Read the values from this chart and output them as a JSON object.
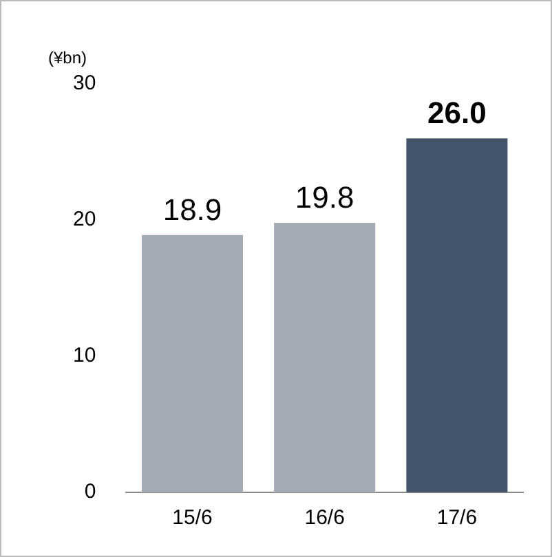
{
  "chart_data": {
    "type": "bar",
    "ylabel": "(¥bn)",
    "categories": [
      "15/6",
      "16/6",
      "17/6"
    ],
    "values": [
      18.9,
      19.8,
      26.0
    ],
    "colors": [
      "#a4abb7",
      "#a4abb7",
      "#44546a"
    ],
    "value_labels": [
      "18.9",
      "19.8",
      "26.0"
    ],
    "ylim": [
      0,
      30
    ],
    "yticks": [
      0,
      10,
      20,
      30
    ],
    "grid": false,
    "legend": false
  }
}
